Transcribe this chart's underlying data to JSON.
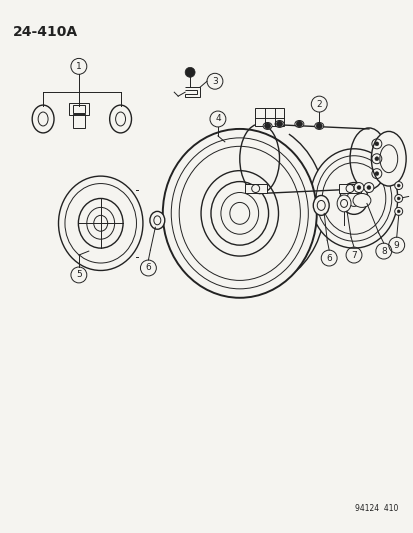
{
  "title": "24-410A",
  "footer": "94124  410",
  "bg_color": "#f5f4f0",
  "line_color": "#222222",
  "fig_width": 4.14,
  "fig_height": 5.33,
  "dpi": 100
}
